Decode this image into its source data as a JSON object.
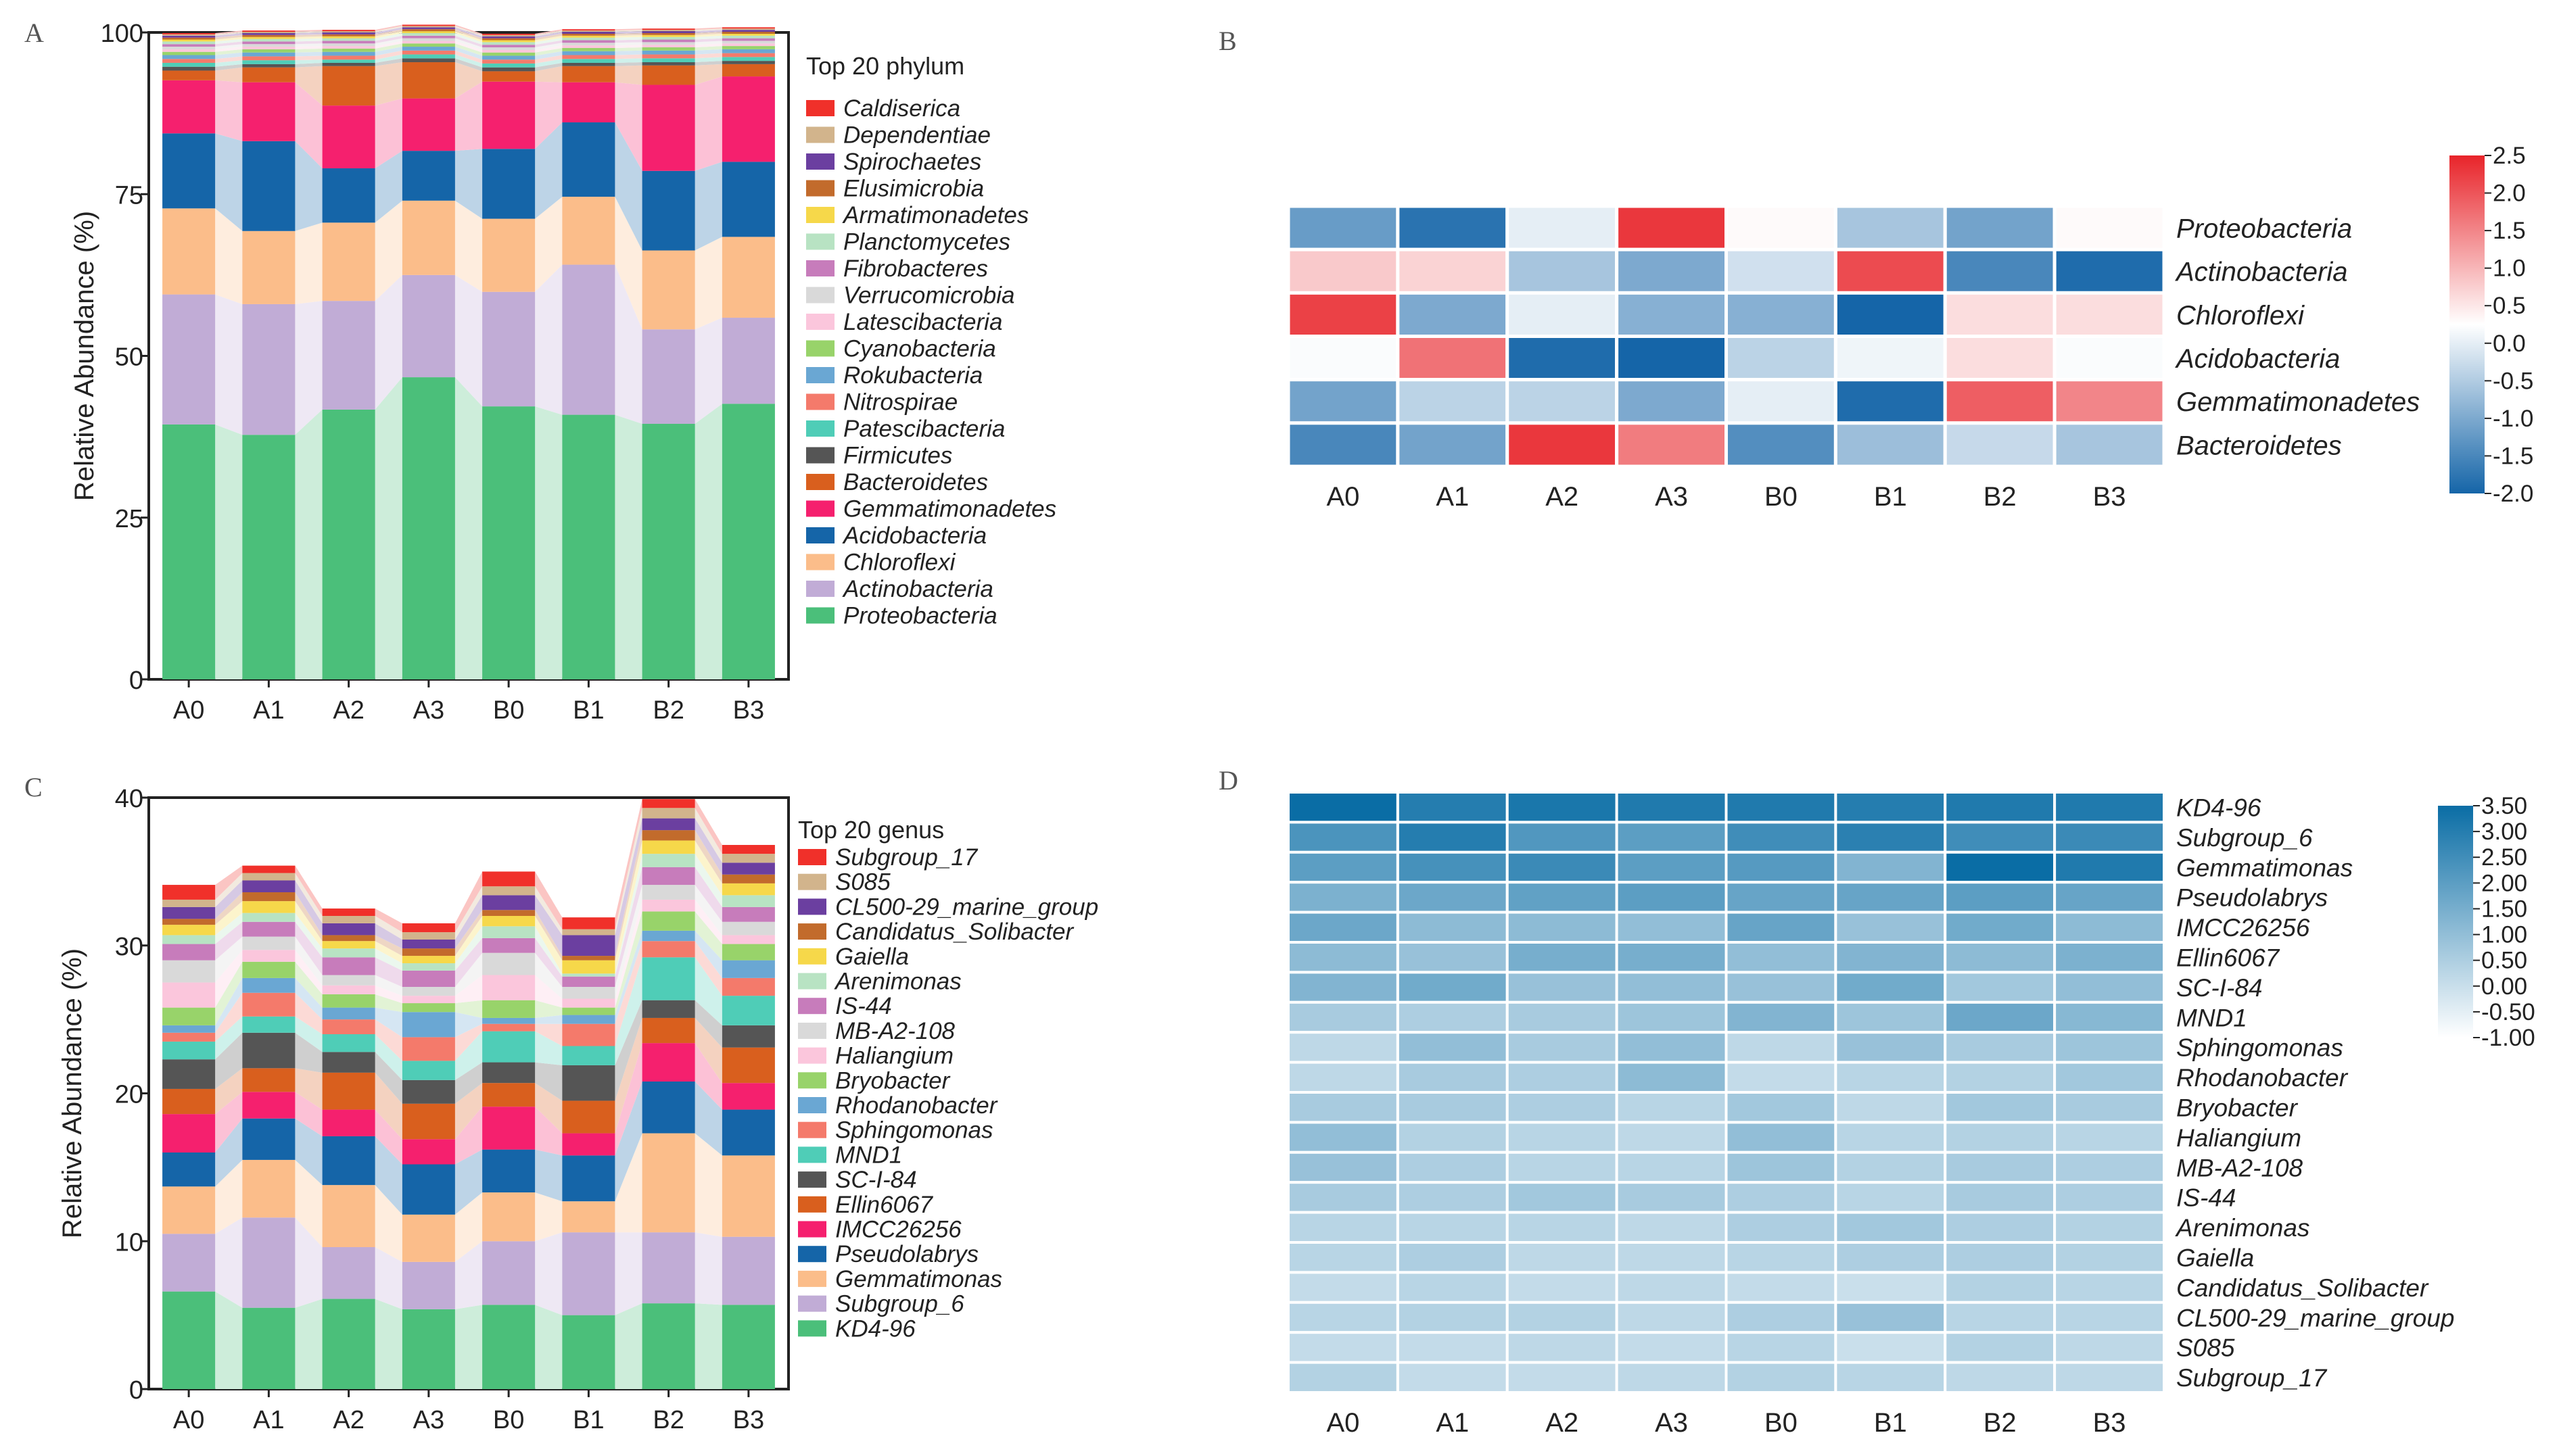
{
  "figure": {
    "panels": [
      "A",
      "B",
      "C",
      "D"
    ]
  },
  "chart_data": [
    {
      "panel": "A",
      "type": "bar",
      "subtype": "stacked-100",
      "ylabel": "Relative Abundance (%)",
      "xlabel": "",
      "ylim": [
        0,
        100
      ],
      "yticks": [
        "0",
        "25",
        "50",
        "75",
        "100"
      ],
      "categories": [
        "A0",
        "A1",
        "A2",
        "A3",
        "B0",
        "B1",
        "B2",
        "B3"
      ],
      "legend_title": "Top 20 phylum",
      "legend_position": "right",
      "series": [
        {
          "name": "Proteobacteria",
          "color": "#4bbf7a",
          "values": [
            39.4,
            37.8,
            41.7,
            46.7,
            42.2,
            40.9,
            39.5,
            42.6
          ]
        },
        {
          "name": "Actinobacteria",
          "color": "#c1acd6",
          "values": [
            20.1,
            20.2,
            16.8,
            15.8,
            17.7,
            23.2,
            14.6,
            13.3
          ]
        },
        {
          "name": "Chloroflexi",
          "color": "#fbbd8a",
          "values": [
            13.3,
            11.3,
            12.1,
            11.5,
            11.3,
            10.5,
            12.2,
            12.5
          ]
        },
        {
          "name": "Acidobacteria",
          "color": "#1565a8",
          "values": [
            11.6,
            13.9,
            8.4,
            7.7,
            10.8,
            11.5,
            12.3,
            11.6
          ]
        },
        {
          "name": "Gemmatimonadetes",
          "color": "#f5206e",
          "values": [
            8.2,
            9.1,
            9.7,
            8.1,
            10.4,
            6.2,
            13.3,
            13.2
          ]
        },
        {
          "name": "Bacteroidetes",
          "color": "#d95f1e",
          "values": [
            1.5,
            2.3,
            6.1,
            5.6,
            1.6,
            2.5,
            3.0,
            1.9
          ]
        },
        {
          "name": "Firmicutes",
          "color": "#555555",
          "values": [
            0.6,
            0.5,
            0.5,
            0.6,
            0.6,
            0.5,
            0.5,
            0.5
          ]
        },
        {
          "name": "Patescibacteria",
          "color": "#4fcdb7",
          "values": [
            0.6,
            0.6,
            0.5,
            0.6,
            0.6,
            0.6,
            0.6,
            0.6
          ]
        },
        {
          "name": "Nitrospirae",
          "color": "#f47a6b",
          "values": [
            0.6,
            0.6,
            0.6,
            0.6,
            0.6,
            0.6,
            0.6,
            0.6
          ]
        },
        {
          "name": "Rokubacteria",
          "color": "#6aa7d3",
          "values": [
            0.6,
            0.6,
            0.6,
            0.6,
            0.6,
            0.6,
            0.6,
            0.6
          ]
        },
        {
          "name": "Cyanobacteria",
          "color": "#98d36a",
          "values": [
            0.5,
            0.5,
            0.5,
            0.5,
            0.5,
            0.5,
            0.5,
            0.5
          ]
        },
        {
          "name": "Latescibacteria",
          "color": "#fbc6dc",
          "values": [
            0.4,
            0.4,
            0.4,
            0.4,
            0.4,
            0.4,
            0.4,
            0.4
          ]
        },
        {
          "name": "Verrucomicrobia",
          "color": "#d9d9d9",
          "values": [
            0.4,
            0.4,
            0.4,
            0.4,
            0.4,
            0.4,
            0.4,
            0.4
          ]
        },
        {
          "name": "Fibrobacteres",
          "color": "#c77cbb",
          "values": [
            0.4,
            0.4,
            0.4,
            0.4,
            0.4,
            0.4,
            0.4,
            0.4
          ]
        },
        {
          "name": "Planctomycetes",
          "color": "#b8e3c3",
          "values": [
            0.4,
            0.4,
            0.4,
            0.4,
            0.4,
            0.4,
            0.4,
            0.4
          ]
        },
        {
          "name": "Armatimonadetes",
          "color": "#f6d84a",
          "values": [
            0.3,
            0.3,
            0.3,
            0.3,
            0.3,
            0.3,
            0.3,
            0.3
          ]
        },
        {
          "name": "Elusimicrobia",
          "color": "#c26b2c",
          "values": [
            0.3,
            0.3,
            0.3,
            0.3,
            0.3,
            0.3,
            0.3,
            0.3
          ]
        },
        {
          "name": "Spirochaetes",
          "color": "#6b3fa0",
          "values": [
            0.3,
            0.3,
            0.3,
            0.3,
            0.3,
            0.3,
            0.3,
            0.3
          ]
        },
        {
          "name": "Dependentiae",
          "color": "#d2b48c",
          "values": [
            0.2,
            0.2,
            0.2,
            0.2,
            0.2,
            0.2,
            0.2,
            0.2
          ]
        },
        {
          "name": "Caldiserica",
          "color": "#f0302a",
          "values": [
            0.2,
            0.2,
            0.2,
            0.2,
            0.2,
            0.2,
            0.2,
            0.2
          ]
        }
      ]
    },
    {
      "panel": "B",
      "type": "heatmap",
      "columns": [
        "A0",
        "A1",
        "A2",
        "A3",
        "B0",
        "B1",
        "B2",
        "B3"
      ],
      "rows": [
        "Proteobacteria",
        "Actinobacteria",
        "Chloroflexi",
        "Acidobacteria",
        "Gemmatimonadetes",
        "Bacteroidetes"
      ],
      "values": [
        [
          -1.2,
          -1.8,
          0.0,
          2.3,
          0.3,
          -0.6,
          -1.1,
          0.3
        ],
        [
          0.8,
          0.7,
          -0.6,
          -1.0,
          -0.2,
          2.1,
          -1.5,
          -1.9
        ],
        [
          2.2,
          -1.0,
          0.0,
          -0.9,
          -0.9,
          -2.0,
          0.6,
          0.6
        ],
        [
          0.2,
          1.7,
          -1.9,
          -2.0,
          -0.4,
          0.1,
          0.6,
          0.2
        ],
        [
          -1.1,
          -0.4,
          -0.4,
          -1.0,
          0.0,
          -1.9,
          1.9,
          1.5
        ],
        [
          -1.5,
          -1.1,
          2.3,
          1.6,
          -1.4,
          -0.7,
          -0.3,
          -0.6
        ]
      ],
      "colorbar": {
        "min": -2.0,
        "max": 2.5,
        "ticks": [
          "2.5",
          "2.0",
          "1.5",
          "1.0",
          "0.5",
          "0.0",
          "-0.5",
          "-1.0",
          "-1.5",
          "-2.0"
        ],
        "colors": [
          "#1565a8",
          "#ffffff",
          "#e8242a"
        ]
      }
    },
    {
      "panel": "C",
      "type": "bar",
      "subtype": "stacked",
      "ylabel": "Relative Abundance (%)",
      "xlabel": "",
      "ylim": [
        0,
        40
      ],
      "yticks": [
        "0",
        "10",
        "20",
        "30",
        "40"
      ],
      "categories": [
        "A0",
        "A1",
        "A2",
        "A3",
        "B0",
        "B1",
        "B2",
        "B3"
      ],
      "legend_title": "Top 20 genus",
      "legend_position": "right",
      "series": [
        {
          "name": "KD4-96",
          "color": "#4bbf7a",
          "values": [
            6.6,
            5.5,
            6.1,
            5.4,
            5.7,
            5.0,
            5.8,
            5.7
          ]
        },
        {
          "name": "Subgroup_6",
          "color": "#c1acd6",
          "values": [
            3.9,
            6.1,
            3.5,
            3.2,
            4.3,
            5.6,
            4.8,
            4.6
          ]
        },
        {
          "name": "Gemmatimonas",
          "color": "#fbbd8a",
          "values": [
            3.2,
            3.9,
            4.2,
            3.2,
            3.3,
            2.1,
            6.7,
            5.5
          ]
        },
        {
          "name": "Pseudolabrys",
          "color": "#1565a8",
          "values": [
            2.3,
            2.8,
            3.3,
            3.4,
            2.9,
            3.1,
            3.5,
            3.1
          ]
        },
        {
          "name": "IMCC26256",
          "color": "#f5206e",
          "values": [
            2.6,
            1.8,
            1.8,
            1.7,
            2.9,
            1.5,
            2.6,
            1.8
          ]
        },
        {
          "name": "Ellin6067",
          "color": "#d95f1e",
          "values": [
            1.7,
            1.6,
            2.5,
            2.4,
            1.6,
            2.2,
            1.7,
            2.4
          ]
        },
        {
          "name": "SC-I-84",
          "color": "#555555",
          "values": [
            2.0,
            2.4,
            1.4,
            1.6,
            1.4,
            2.4,
            1.2,
            1.5
          ]
        },
        {
          "name": "MND1",
          "color": "#4fcdb7",
          "values": [
            1.2,
            1.1,
            1.2,
            1.3,
            2.1,
            1.3,
            2.9,
            2.0
          ]
        },
        {
          "name": "Sphingomonas",
          "color": "#f47a6b",
          "values": [
            0.6,
            1.6,
            1.0,
            1.6,
            0.5,
            1.5,
            1.1,
            1.2
          ]
        },
        {
          "name": "Rhodanobacter",
          "color": "#6aa7d3",
          "values": [
            0.5,
            1.0,
            0.8,
            1.7,
            0.4,
            0.6,
            0.7,
            1.2
          ]
        },
        {
          "name": "Bryobacter",
          "color": "#98d36a",
          "values": [
            1.2,
            1.1,
            0.9,
            0.6,
            1.2,
            0.5,
            1.3,
            1.1
          ]
        },
        {
          "name": "Haliangium",
          "color": "#fbc6dc",
          "values": [
            1.7,
            0.8,
            0.6,
            0.5,
            1.7,
            0.6,
            0.8,
            0.6
          ]
        },
        {
          "name": "MB-A2-108",
          "color": "#d9d9d9",
          "values": [
            1.5,
            0.9,
            0.7,
            0.6,
            1.5,
            0.8,
            1.0,
            0.9
          ]
        },
        {
          "name": "IS-44",
          "color": "#c77cbb",
          "values": [
            1.1,
            1.0,
            1.2,
            1.1,
            1.0,
            0.7,
            1.2,
            1.0
          ]
        },
        {
          "name": "Arenimonas",
          "color": "#b8e3c3",
          "values": [
            0.6,
            0.6,
            0.6,
            0.5,
            0.8,
            0.2,
            0.9,
            0.8
          ]
        },
        {
          "name": "Gaiella",
          "color": "#f6d84a",
          "values": [
            0.7,
            0.8,
            0.5,
            0.5,
            0.7,
            0.9,
            0.9,
            0.8
          ]
        },
        {
          "name": "Candidatus_Solibacter",
          "color": "#c26b2c",
          "values": [
            0.4,
            0.6,
            0.4,
            0.5,
            0.4,
            0.3,
            0.7,
            0.6
          ]
        },
        {
          "name": "CL500-29_marine_group",
          "color": "#6b3fa0",
          "values": [
            0.8,
            0.8,
            0.8,
            0.6,
            1.0,
            1.4,
            0.8,
            0.8
          ]
        },
        {
          "name": "S085",
          "color": "#d2b48c",
          "values": [
            0.5,
            0.5,
            0.5,
            0.5,
            0.6,
            0.4,
            0.7,
            0.6
          ]
        },
        {
          "name": "Subgroup_17",
          "color": "#f0302a",
          "values": [
            1.0,
            0.5,
            0.5,
            0.6,
            1.0,
            0.8,
            0.6,
            0.6
          ]
        }
      ]
    },
    {
      "panel": "D",
      "type": "heatmap",
      "columns": [
        "A0",
        "A1",
        "A2",
        "A3",
        "B0",
        "B1",
        "B2",
        "B3"
      ],
      "rows": [
        "KD4-96",
        "Subgroup_6",
        "Gemmatimonas",
        "Pseudolabrys",
        "IMCC26256",
        "Ellin6067",
        "SC-I-84",
        "MND1",
        "Sphingomonas",
        "Rhodanobacter",
        "Bryobacter",
        "Haliangium",
        "MB-A2-108",
        "IS-44",
        "Arenimonas",
        "Gaiella",
        "Candidatus_Solibacter",
        "CL500-29_marine_group",
        "S085",
        "Subgroup_17"
      ],
      "values": [
        [
          3.5,
          3.0,
          3.2,
          3.1,
          3.1,
          3.0,
          3.1,
          3.1
        ],
        [
          2.3,
          3.0,
          2.2,
          2.0,
          2.5,
          2.9,
          2.5,
          2.6
        ],
        [
          2.0,
          2.4,
          2.6,
          2.0,
          2.1,
          1.3,
          3.5,
          3.1
        ],
        [
          1.4,
          1.7,
          1.9,
          2.0,
          1.8,
          1.8,
          2.0,
          1.8
        ],
        [
          1.7,
          1.1,
          1.1,
          1.0,
          1.8,
          0.9,
          1.6,
          1.1
        ],
        [
          1.1,
          0.9,
          1.5,
          1.5,
          1.0,
          1.3,
          1.1,
          1.4
        ],
        [
          1.3,
          1.6,
          0.9,
          1.0,
          0.9,
          1.6,
          0.7,
          1.0
        ],
        [
          0.6,
          0.5,
          0.6,
          0.8,
          1.3,
          0.8,
          1.7,
          1.2
        ],
        [
          0.2,
          1.0,
          0.6,
          1.0,
          0.2,
          0.9,
          0.6,
          0.8
        ],
        [
          0.2,
          0.6,
          0.5,
          1.1,
          0.1,
          0.3,
          0.4,
          0.7
        ],
        [
          0.6,
          0.6,
          0.5,
          0.3,
          0.7,
          0.2,
          0.7,
          0.6
        ],
        [
          1.0,
          0.4,
          0.3,
          0.2,
          1.0,
          0.3,
          0.4,
          0.3
        ],
        [
          0.9,
          0.5,
          0.3,
          0.3,
          0.8,
          0.4,
          0.6,
          0.5
        ],
        [
          0.6,
          0.5,
          0.7,
          0.6,
          0.5,
          0.3,
          0.6,
          0.5
        ],
        [
          0.3,
          0.3,
          0.3,
          0.2,
          0.5,
          0.7,
          0.5,
          0.4
        ],
        [
          0.3,
          0.5,
          0.2,
          0.2,
          0.3,
          0.5,
          0.5,
          0.4
        ],
        [
          0.1,
          0.3,
          0.1,
          0.2,
          0.1,
          0.0,
          0.4,
          0.3
        ],
        [
          0.3,
          0.4,
          0.4,
          0.2,
          0.5,
          0.9,
          0.3,
          0.3
        ],
        [
          0.1,
          0.1,
          0.2,
          0.1,
          0.3,
          0.0,
          0.4,
          0.2
        ],
        [
          0.4,
          0.1,
          0.1,
          0.2,
          0.4,
          0.3,
          0.2,
          0.2
        ]
      ],
      "colorbar": {
        "min": -1.0,
        "max": 3.5,
        "ticks": [
          "3.50",
          "3.00",
          "2.50",
          "2.00",
          "1.50",
          "1.00",
          "0.50",
          "0.00",
          "-0.50",
          "-1.00"
        ],
        "colors": [
          "#ffffff",
          "#0a6da5"
        ]
      }
    }
  ]
}
